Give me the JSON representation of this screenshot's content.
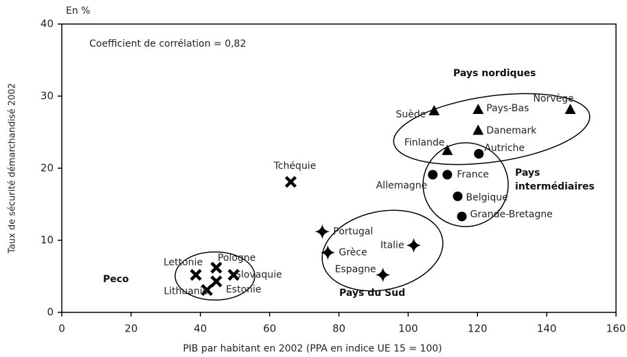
{
  "chart_data": {
    "type": "scatter",
    "annotation": "Coefficient de corrélation = 0,82",
    "y_unit": "En %",
    "xlabel": "PIB par habitant en 2002 (PPA en indice UE 15 = 100)",
    "ylabel": "Taux de sécurité démarchandisé 2002",
    "xlim": [
      0,
      160
    ],
    "xticks": [
      0,
      20,
      40,
      60,
      80,
      100,
      120,
      140,
      160
    ],
    "ylim": [
      0,
      40
    ],
    "yticks": [
      0,
      10,
      20,
      30,
      40
    ],
    "series": [
      {
        "name": "Pays nordiques",
        "marker": "triangle",
        "color": "#000000",
        "labels": [
          "Suède",
          "Pays-Bas",
          "Norvège",
          "Danemark",
          "Finlande"
        ],
        "x": [
          107.5,
          120.2,
          146.8,
          120.2,
          111.3
        ],
        "values": [
          27.9,
          28.1,
          28.1,
          25.2,
          22.4
        ]
      },
      {
        "name": "Pays intermédiaires",
        "marker": "circle",
        "color": "#000000",
        "labels": [
          "Autriche",
          "Allemagne",
          "France",
          "Belgique",
          "Grande-Bretagne"
        ],
        "x": [
          120.4,
          107.1,
          111.3,
          114.3,
          115.5
        ],
        "values": [
          22.0,
          19.1,
          19.1,
          16.1,
          13.3
        ]
      },
      {
        "name": "Pays du Sud",
        "marker": "star",
        "color": "#000000",
        "labels": [
          "Portugal",
          "Grèce",
          "Italie",
          "Espagne"
        ],
        "x": [
          75.2,
          76.8,
          101.6,
          92.7
        ],
        "values": [
          11.2,
          8.3,
          9.3,
          5.2
        ]
      },
      {
        "name": "Peco",
        "marker": "cross",
        "color": "#000000",
        "labels": [
          "Lettonie",
          "Pologne",
          "Slovaquie",
          "Estonie",
          "Lithuanie",
          "Tchéquie"
        ],
        "x": [
          38.7,
          44.6,
          49.6,
          44.6,
          41.9,
          66.1
        ],
        "values": [
          5.2,
          6.2,
          5.2,
          4.3,
          3.1,
          18.1
        ]
      }
    ]
  }
}
